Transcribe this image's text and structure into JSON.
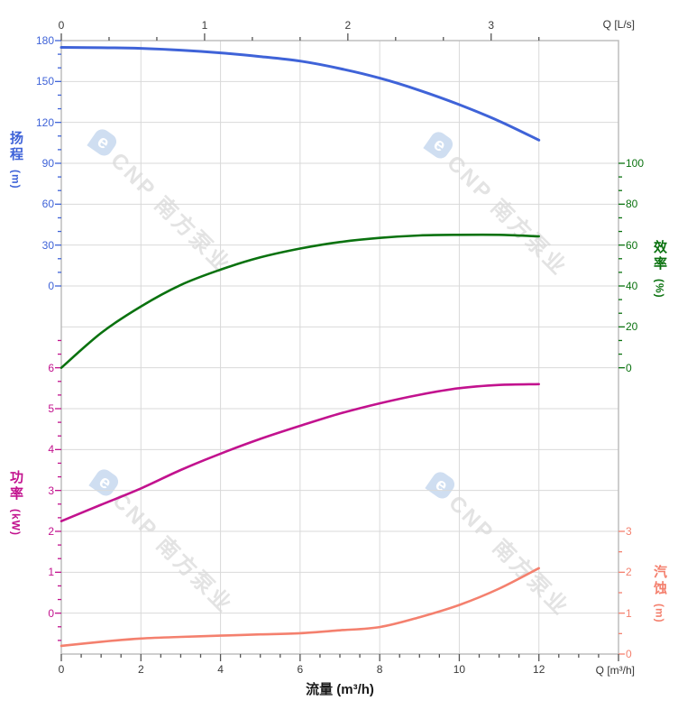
{
  "watermark": {
    "logo_glyph": "e",
    "brand": "CNP 南方泵业",
    "logo_color": "#cfdef1",
    "text_color": "#e3e3e3"
  },
  "axes": {
    "top": {
      "label": "Q [L/s]",
      "ticks": [
        0,
        1,
        2,
        3
      ],
      "color": "#3a3a3a"
    },
    "bottom": {
      "label": "Q [m³/h]",
      "title": "流量 (m³/h)",
      "ticks": [
        0,
        2,
        4,
        6,
        8,
        10,
        12
      ],
      "color": "#3a3a3a"
    },
    "head": {
      "title_cn": "扬程",
      "title_unit": "(m)",
      "ticks": [
        180,
        150,
        120,
        90,
        60,
        30,
        0
      ],
      "color": "#3F63D8"
    },
    "efficiency": {
      "title_cn": "效率",
      "title_unit": "(%)",
      "ticks": [
        100,
        80,
        60,
        40,
        20,
        0
      ],
      "color": "#0A720F"
    },
    "power": {
      "title_cn": "功率",
      "title_unit": "(kW)",
      "ticks": [
        6,
        5,
        4,
        3,
        2,
        1,
        0
      ],
      "color": "#C2128E"
    },
    "npsh": {
      "title_cn": "汽蚀",
      "title_unit": "(m)",
      "ticks": [
        3,
        2,
        1,
        0
      ],
      "color": "#F4806E"
    }
  },
  "chart_data": {
    "type": "line",
    "title": "",
    "xlabel": "流量 (m³/h)",
    "x_secondary_label": "Q [L/s]",
    "x_units": [
      "m³/h",
      "L/s"
    ],
    "x_range_m3h": [
      0,
      14
    ],
    "x_range_Ls": [
      0,
      3.889
    ],
    "grid": true,
    "x": [
      0,
      1,
      2,
      3,
      4,
      5,
      6,
      7,
      8,
      9,
      10,
      11,
      12
    ],
    "series": [
      {
        "name": "扬程",
        "unit": "m",
        "axis": "head",
        "color": "#3F63D8",
        "axis_range": [
          0,
          180
        ],
        "values": [
          175,
          174.8,
          174.3,
          173,
          171,
          168.3,
          165,
          159.5,
          152.5,
          143.5,
          133,
          121,
          107
        ]
      },
      {
        "name": "效率",
        "unit": "%",
        "axis": "efficiency",
        "color": "#0A720F",
        "axis_range": [
          0,
          100
        ],
        "values": [
          0,
          17,
          30,
          40.5,
          48,
          54,
          58.3,
          61.5,
          63.5,
          64.7,
          65,
          65,
          64.3
        ]
      },
      {
        "name": "功率",
        "unit": "kW",
        "axis": "power",
        "color": "#C2128E",
        "axis_range": [
          0,
          6
        ],
        "values": [
          2.25,
          2.65,
          3.05,
          3.5,
          3.9,
          4.26,
          4.58,
          4.88,
          5.13,
          5.34,
          5.5,
          5.58,
          5.6
        ]
      },
      {
        "name": "汽蚀",
        "unit": "m",
        "axis": "npsh",
        "color": "#F4806E",
        "axis_range": [
          0,
          3
        ],
        "values": [
          0.2,
          0.3,
          0.38,
          0.42,
          0.45,
          0.48,
          0.51,
          0.58,
          0.66,
          0.9,
          1.2,
          1.6,
          2.1
        ]
      }
    ]
  }
}
